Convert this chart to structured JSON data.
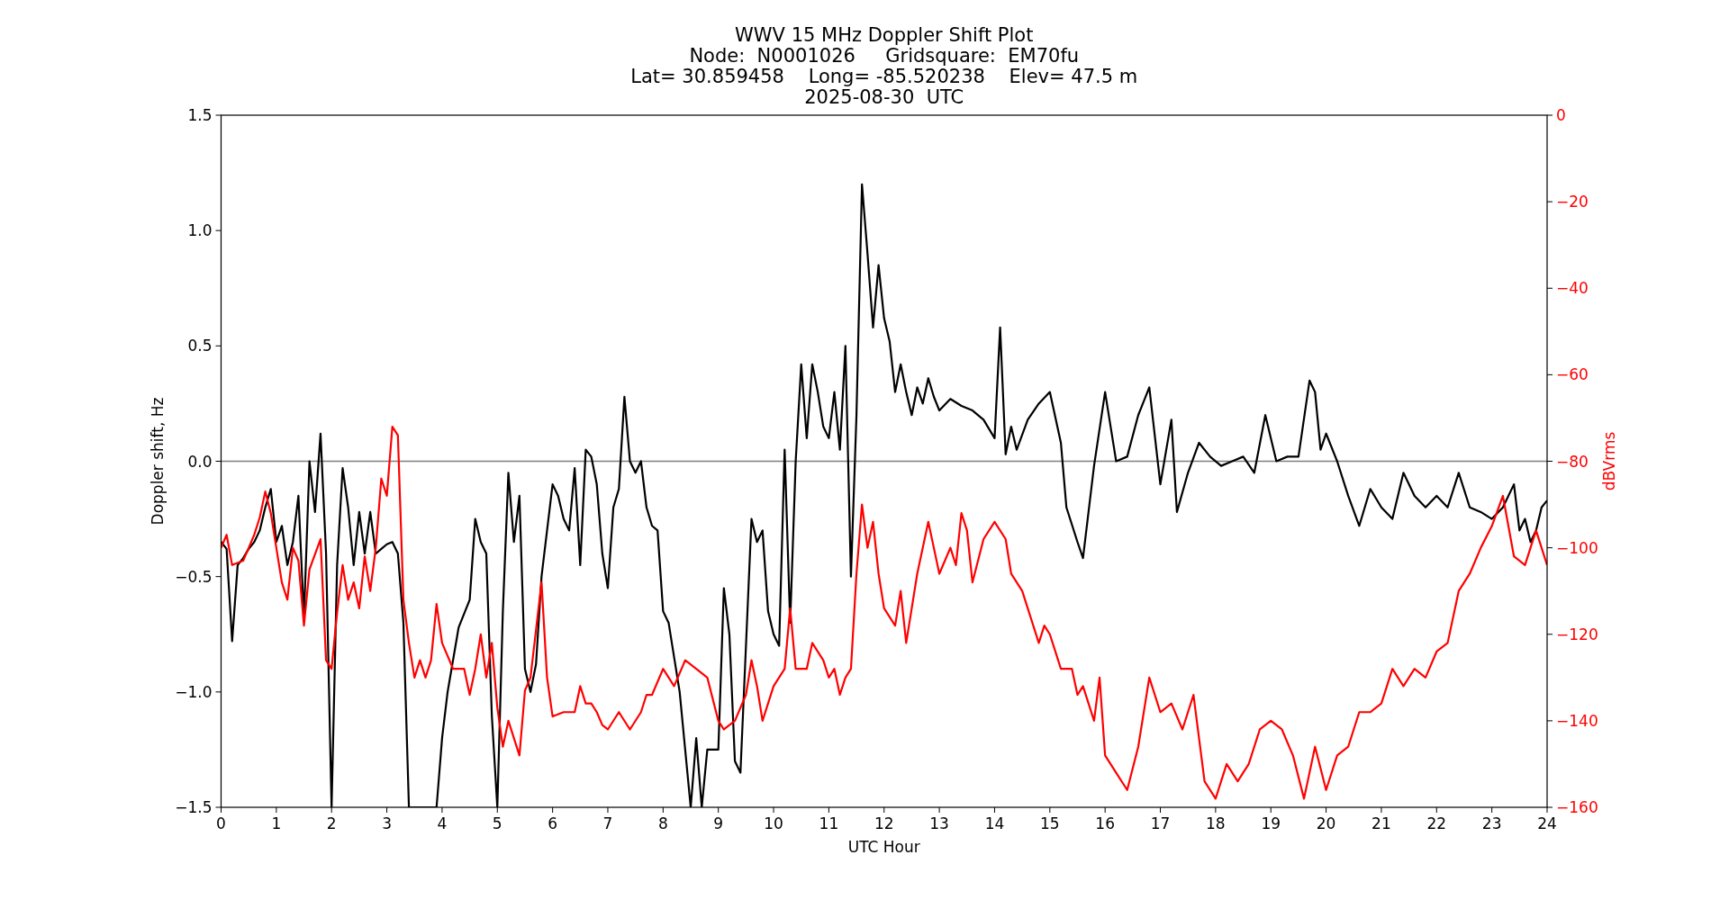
{
  "chart_data": {
    "type": "line",
    "title": "WWV 15 MHz Doppler Shift Plot",
    "subtitle": "Node:  N0001026     Gridsquare:  EM70fu\nLat= 30.859458    Long= -85.520238    Elev= 47.5 m\n2025-08-30  UTC",
    "xlabel": "UTC Hour",
    "ylabel": "Doppler shift, Hz",
    "y2label": "dBVrms",
    "xlim": [
      0,
      24
    ],
    "xticks": [
      0,
      1,
      2,
      3,
      4,
      5,
      6,
      7,
      8,
      9,
      10,
      11,
      12,
      13,
      14,
      15,
      16,
      17,
      18,
      19,
      20,
      21,
      22,
      23,
      24
    ],
    "ylim": [
      -1.5,
      1.5
    ],
    "yticks": [
      {
        "value": -1.5,
        "label": "−1.5"
      },
      {
        "value": -1.0,
        "label": "−1.0"
      },
      {
        "value": -0.5,
        "label": "−0.5"
      },
      {
        "value": 0,
        "label": "0.0"
      },
      {
        "value": 0.5,
        "label": "0.5"
      },
      {
        "value": 1.0,
        "label": "1.0"
      },
      {
        "value": 1.5,
        "label": "1.5"
      }
    ],
    "y2lim": [
      -160,
      0
    ],
    "y2ticks": [
      {
        "value": -160,
        "label": "−160"
      },
      {
        "value": -140,
        "label": "−140"
      },
      {
        "value": -120,
        "label": "−120"
      },
      {
        "value": -100,
        "label": "−100"
      },
      {
        "value": -80,
        "label": "−80"
      },
      {
        "value": -60,
        "label": "−60"
      },
      {
        "value": -40,
        "label": "−40"
      },
      {
        "value": -20,
        "label": "−20"
      },
      0
    ],
    "ref_lines": [
      {
        "axis": "y",
        "value": 0,
        "color": "#808080"
      }
    ],
    "series": [
      {
        "color": "#000000",
        "x": [
          0,
          0.1,
          0.2,
          0.3,
          0.4,
          0.5,
          0.6,
          0.7,
          0.8,
          0.9,
          1.0,
          1.1,
          1.2,
          1.3,
          1.4,
          1.5,
          1.6,
          1.7,
          1.8,
          1.9,
          2.0,
          2.1,
          2.2,
          2.3,
          2.4,
          2.5,
          2.6,
          2.7,
          2.8,
          2.9,
          3.0,
          3.1,
          3.2,
          3.3,
          3.4,
          3.6,
          3.9,
          4.0,
          4.1,
          4.3,
          4.5,
          4.6,
          4.7,
          4.8,
          4.9,
          5.0,
          5.1,
          5.2,
          5.3,
          5.4,
          5.5,
          5.6,
          5.7,
          5.8,
          6.0,
          6.1,
          6.2,
          6.3,
          6.4,
          6.5,
          6.6,
          6.7,
          6.8,
          6.9,
          7.0,
          7.1,
          7.2,
          7.3,
          7.4,
          7.5,
          7.6,
          7.7,
          7.8,
          7.9,
          8.0,
          8.1,
          8.2,
          8.3,
          8.5,
          8.6,
          8.7,
          8.8,
          9.0,
          9.1,
          9.2,
          9.3,
          9.4,
          9.6,
          9.7,
          9.8,
          9.9,
          10.0,
          10.1,
          10.2,
          10.3,
          10.4,
          10.5,
          10.6,
          10.7,
          10.8,
          10.9,
          11.0,
          11.1,
          11.2,
          11.3,
          11.4,
          11.5,
          11.6,
          11.7,
          11.8,
          11.9,
          12.0,
          12.1,
          12.2,
          12.3,
          12.4,
          12.5,
          12.6,
          12.7,
          12.8,
          12.9,
          13.0,
          13.2,
          13.4,
          13.6,
          13.8,
          14.0,
          14.1,
          14.2,
          14.3,
          14.4,
          14.6,
          14.8,
          15.0,
          15.2,
          15.3,
          15.5,
          15.6,
          15.8,
          16.0,
          16.2,
          16.4,
          16.6,
          16.8,
          17.0,
          17.2,
          17.3,
          17.5,
          17.7,
          17.9,
          18.1,
          18.3,
          18.5,
          18.7,
          18.9,
          19.1,
          19.3,
          19.5,
          19.7,
          19.8,
          19.9,
          20.0,
          20.2,
          20.4,
          20.6,
          20.8,
          21.0,
          21.2,
          21.4,
          21.6,
          21.8,
          22.0,
          22.2,
          22.4,
          22.6,
          22.8,
          23.0,
          23.2,
          23.4,
          23.5,
          23.6,
          23.7,
          23.8,
          23.9,
          24.0
        ],
        "values": [
          -0.35,
          -0.38,
          -0.78,
          -0.45,
          -0.42,
          -0.38,
          -0.35,
          -0.3,
          -0.2,
          -0.12,
          -0.35,
          -0.28,
          -0.45,
          -0.35,
          -0.15,
          -0.68,
          0.0,
          -0.22,
          0.12,
          -0.4,
          -1.5,
          -0.45,
          -0.03,
          -0.2,
          -0.45,
          -0.22,
          -0.4,
          -0.22,
          -0.4,
          -0.38,
          -0.36,
          -0.35,
          -0.4,
          -0.7,
          -1.5,
          -1.5,
          -1.5,
          -1.2,
          -1.0,
          -0.72,
          -0.6,
          -0.25,
          -0.35,
          -0.4,
          -1.1,
          -1.5,
          -0.65,
          -0.05,
          -0.35,
          -0.15,
          -0.9,
          -1.0,
          -0.88,
          -0.5,
          -0.1,
          -0.15,
          -0.25,
          -0.3,
          -0.03,
          -0.45,
          0.05,
          0.02,
          -0.1,
          -0.4,
          -0.55,
          -0.2,
          -0.12,
          0.28,
          0.0,
          -0.05,
          0.0,
          -0.2,
          -0.28,
          -0.3,
          -0.65,
          -0.7,
          -0.85,
          -1.0,
          -1.5,
          -1.2,
          -1.5,
          -1.25,
          -1.25,
          -0.55,
          -0.75,
          -1.3,
          -1.35,
          -0.25,
          -0.35,
          -0.3,
          -0.65,
          -0.75,
          -0.8,
          0.05,
          -0.7,
          0.0,
          0.42,
          0.1,
          0.42,
          0.3,
          0.15,
          0.1,
          0.3,
          0.05,
          0.5,
          -0.5,
          0.2,
          1.2,
          0.9,
          0.58,
          0.85,
          0.62,
          0.52,
          0.3,
          0.42,
          0.3,
          0.2,
          0.32,
          0.25,
          0.36,
          0.28,
          0.22,
          0.27,
          0.24,
          0.22,
          0.18,
          0.1,
          0.58,
          0.03,
          0.15,
          0.05,
          0.18,
          0.25,
          0.3,
          0.08,
          -0.2,
          -0.35,
          -0.42,
          -0.02,
          0.3,
          0.0,
          0.02,
          0.2,
          0.32,
          -0.1,
          0.18,
          -0.22,
          -0.05,
          0.08,
          0.02,
          -0.02,
          0.0,
          0.02,
          -0.05,
          0.2,
          0.0,
          0.02,
          0.02,
          0.35,
          0.3,
          0.05,
          0.12,
          0.0,
          -0.15,
          -0.28,
          -0.12,
          -0.2,
          -0.25,
          -0.05,
          -0.15,
          -0.2,
          -0.15,
          -0.2,
          -0.05,
          -0.2,
          -0.22,
          -0.25,
          -0.2,
          -0.1,
          -0.3,
          -0.25,
          -0.35,
          -0.3,
          -0.2,
          -0.17
        ]
      },
      {
        "color": "#ff0000",
        "axis": "y2",
        "x": [
          0,
          0.1,
          0.2,
          0.4,
          0.5,
          0.6,
          0.7,
          0.8,
          0.9,
          1.0,
          1.1,
          1.2,
          1.3,
          1.4,
          1.5,
          1.6,
          1.8,
          1.9,
          2.0,
          2.1,
          2.2,
          2.3,
          2.4,
          2.5,
          2.6,
          2.7,
          2.8,
          2.9,
          3.0,
          3.1,
          3.2,
          3.3,
          3.4,
          3.5,
          3.6,
          3.7,
          3.8,
          3.9,
          4.0,
          4.2,
          4.4,
          4.5,
          4.6,
          4.7,
          4.8,
          4.9,
          5.0,
          5.1,
          5.2,
          5.4,
          5.5,
          5.6,
          5.8,
          5.9,
          6.0,
          6.2,
          6.4,
          6.5,
          6.6,
          6.7,
          6.8,
          6.9,
          7.0,
          7.2,
          7.4,
          7.6,
          7.7,
          7.8,
          8.0,
          8.2,
          8.4,
          8.6,
          8.8,
          9.0,
          9.1,
          9.3,
          9.5,
          9.6,
          9.7,
          9.8,
          10.0,
          10.2,
          10.3,
          10.4,
          10.6,
          10.7,
          10.9,
          11.0,
          11.1,
          11.2,
          11.3,
          11.4,
          11.5,
          11.6,
          11.7,
          11.8,
          11.9,
          12.0,
          12.2,
          12.3,
          12.4,
          12.6,
          12.8,
          12.9,
          13.0,
          13.2,
          13.3,
          13.4,
          13.5,
          13.6,
          13.8,
          14.0,
          14.2,
          14.3,
          14.5,
          14.7,
          14.8,
          14.9,
          15.0,
          15.2,
          15.4,
          15.5,
          15.6,
          15.8,
          15.9,
          16.0,
          16.2,
          16.4,
          16.6,
          16.8,
          17.0,
          17.2,
          17.4,
          17.6,
          17.8,
          18.0,
          18.2,
          18.4,
          18.6,
          18.8,
          19.0,
          19.2,
          19.4,
          19.6,
          19.8,
          20.0,
          20.2,
          20.4,
          20.6,
          20.8,
          21.0,
          21.2,
          21.4,
          21.6,
          21.8,
          22.0,
          22.2,
          22.4,
          22.6,
          22.8,
          23.0,
          23.2,
          23.4,
          23.6,
          23.8,
          24.0
        ],
        "values": [
          -100,
          -97,
          -104,
          -103,
          -100,
          -97,
          -93,
          -87,
          -92,
          -100,
          -108,
          -112,
          -100,
          -103,
          -118,
          -105,
          -98,
          -126,
          -128,
          -115,
          -104,
          -112,
          -108,
          -114,
          -102,
          -110,
          -100,
          -84,
          -88,
          -72,
          -74,
          -112,
          -122,
          -130,
          -126,
          -130,
          -126,
          -113,
          -122,
          -128,
          -128,
          -134,
          -128,
          -120,
          -130,
          -122,
          -137,
          -146,
          -140,
          -148,
          -133,
          -130,
          -108,
          -130,
          -139,
          -138,
          -138,
          -132,
          -136,
          -136,
          -138,
          -141,
          -142,
          -138,
          -142,
          -138,
          -134,
          -134,
          -128,
          -132,
          -126,
          -128,
          -130,
          -140,
          -142,
          -140,
          -134,
          -126,
          -132,
          -140,
          -132,
          -128,
          -114,
          -128,
          -128,
          -122,
          -126,
          -130,
          -128,
          -134,
          -130,
          -128,
          -106,
          -90,
          -100,
          -94,
          -106,
          -114,
          -118,
          -110,
          -122,
          -106,
          -94,
          -100,
          -106,
          -100,
          -104,
          -92,
          -96,
          -108,
          -98,
          -94,
          -98,
          -106,
          -110,
          -118,
          -122,
          -118,
          -120,
          -128,
          -128,
          -134,
          -132,
          -140,
          -130,
          -148,
          -152,
          -156,
          -146,
          -130,
          -138,
          -136,
          -142,
          -134,
          -154,
          -158,
          -150,
          -154,
          -150,
          -142,
          -140,
          -142,
          -148,
          -158,
          -146,
          -156,
          -148,
          -146,
          -138,
          -138,
          -136,
          -128,
          -132,
          -128,
          -130,
          -124,
          -122,
          -110,
          -106,
          -100,
          -95,
          -88,
          -102,
          -104,
          -96,
          -104
        ]
      }
    ]
  }
}
